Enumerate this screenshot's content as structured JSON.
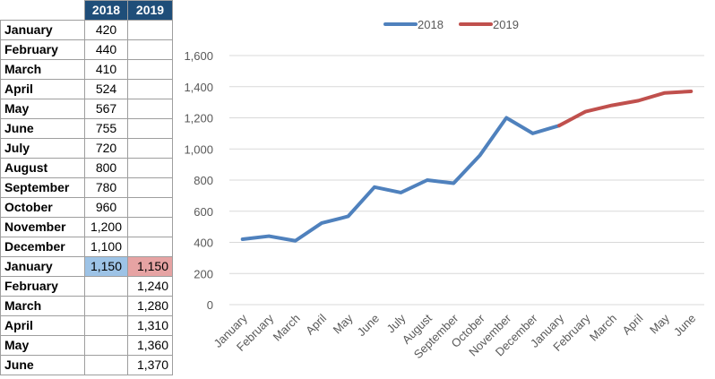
{
  "table": {
    "headers": [
      "",
      "2018",
      "2019"
    ],
    "rows": [
      {
        "month": "January",
        "v2018": "420",
        "v2019": ""
      },
      {
        "month": "February",
        "v2018": "440",
        "v2019": ""
      },
      {
        "month": "March",
        "v2018": "410",
        "v2019": ""
      },
      {
        "month": "April",
        "v2018": "524",
        "v2019": ""
      },
      {
        "month": "May",
        "v2018": "567",
        "v2019": ""
      },
      {
        "month": "June",
        "v2018": "755",
        "v2019": ""
      },
      {
        "month": "July",
        "v2018": "720",
        "v2019": ""
      },
      {
        "month": "August",
        "v2018": "800",
        "v2019": ""
      },
      {
        "month": "September",
        "v2018": "780",
        "v2019": ""
      },
      {
        "month": "October",
        "v2018": "960",
        "v2019": ""
      },
      {
        "month": "November",
        "v2018": "1,200",
        "v2019": ""
      },
      {
        "month": "December",
        "v2018": "1,100",
        "v2019": ""
      },
      {
        "month": "January",
        "v2018": "1,150",
        "v2019": "1,150",
        "highlight": true
      },
      {
        "month": "February",
        "v2018": "",
        "v2019": "1,240"
      },
      {
        "month": "March",
        "v2018": "",
        "v2019": "1,280"
      },
      {
        "month": "April",
        "v2018": "",
        "v2019": "1,310"
      },
      {
        "month": "May",
        "v2018": "",
        "v2019": "1,360"
      },
      {
        "month": "June",
        "v2018": "",
        "v2019": "1,370"
      }
    ]
  },
  "colors": {
    "header_bg": "#1f4e79",
    "series_2018": "#4f81bd",
    "series_2019": "#c0504d",
    "highlight_2018": "#9dc3e6",
    "highlight_2019": "#e6a3a3",
    "gridline": "#d9d9d9"
  },
  "chart_data": {
    "type": "line",
    "title": "",
    "xlabel": "",
    "ylabel": "",
    "categories": [
      "January",
      "February",
      "March",
      "April",
      "May",
      "June",
      "July",
      "August",
      "September",
      "October",
      "November",
      "December",
      "January",
      "February",
      "March",
      "April",
      "May",
      "June"
    ],
    "series": [
      {
        "name": "2018",
        "values": [
          420,
          440,
          410,
          524,
          567,
          755,
          720,
          800,
          780,
          960,
          1200,
          1100,
          1150,
          null,
          null,
          null,
          null,
          null
        ]
      },
      {
        "name": "2019",
        "values": [
          null,
          null,
          null,
          null,
          null,
          null,
          null,
          null,
          null,
          null,
          null,
          null,
          1150,
          1240,
          1280,
          1310,
          1360,
          1370
        ]
      }
    ],
    "ylim": [
      0,
      1600
    ],
    "yticks": [
      0,
      200,
      400,
      600,
      800,
      1000,
      1200,
      1400,
      1600
    ],
    "ytick_labels": [
      "0",
      "200",
      "400",
      "600",
      "800",
      "1,000",
      "1,200",
      "1,400",
      "1,600"
    ],
    "grid": true,
    "legend": "top-center"
  }
}
